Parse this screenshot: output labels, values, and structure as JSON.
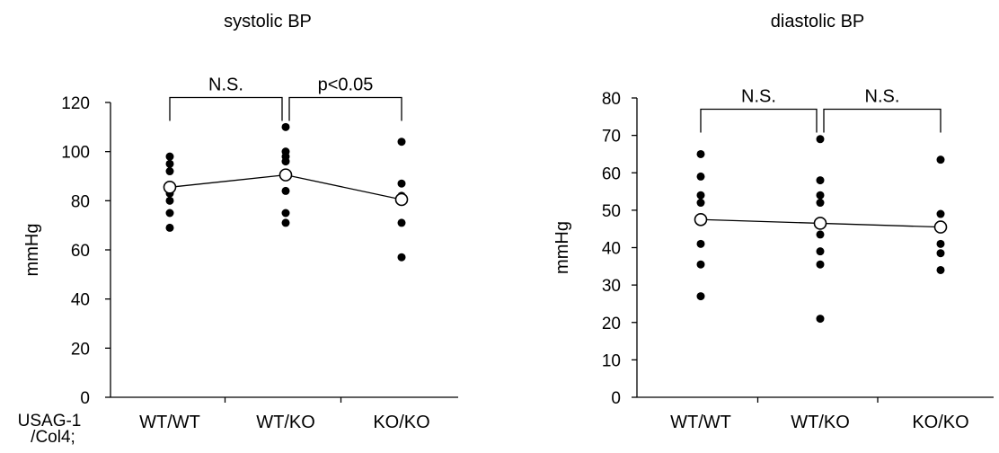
{
  "chart_data": [
    {
      "type": "scatter",
      "title": "systolic BP",
      "ylabel": "mmHg",
      "ylim": [
        0,
        120
      ],
      "yticks": [
        0,
        20,
        40,
        60,
        80,
        100,
        120
      ],
      "categories": [
        "WT/WT",
        "WT/KO",
        "KO/KO"
      ],
      "row_label": [
        "USAG-1",
        "/Col4;"
      ],
      "points": [
        [
          98,
          95,
          92,
          85,
          83,
          80,
          75,
          69
        ],
        [
          110,
          100,
          98,
          96,
          90,
          84,
          75,
          71
        ],
        [
          104,
          87,
          82,
          71,
          57
        ]
      ],
      "means": [
        85.5,
        90.5,
        80.5
      ],
      "comparisons": [
        {
          "from": 0,
          "to": 1,
          "label": "N.S."
        },
        {
          "from": 1,
          "to": 2,
          "label": "p<0.05"
        }
      ],
      "bracket_level": 122
    },
    {
      "type": "scatter",
      "title": "diastolic BP",
      "ylabel": "mmHg",
      "ylim": [
        0,
        80
      ],
      "yticks": [
        0,
        10,
        20,
        30,
        40,
        50,
        60,
        70,
        80
      ],
      "categories": [
        "WT/WT",
        "WT/KO",
        "KO/KO"
      ],
      "points": [
        [
          65,
          59,
          54,
          52,
          41,
          35.5,
          27
        ],
        [
          69,
          58,
          54,
          52,
          43.5,
          39,
          35.5,
          21
        ],
        [
          63.5,
          49,
          41,
          38.5,
          34
        ]
      ],
      "means": [
        47.5,
        46.5,
        45.5
      ],
      "comparisons": [
        {
          "from": 0,
          "to": 1,
          "label": "N.S."
        },
        {
          "from": 1,
          "to": 2,
          "label": "N.S."
        }
      ],
      "bracket_level": 77
    }
  ]
}
